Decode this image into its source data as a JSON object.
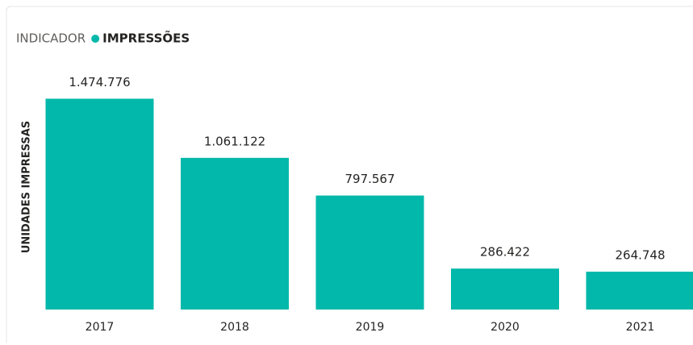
{
  "chart_data": {
    "type": "bar",
    "legend_title": "INDICADOR",
    "y_label": "UNIDADES IMPRESSAS",
    "categories": [
      "2017",
      "2018",
      "2019",
      "2020",
      "2021"
    ],
    "series": [
      {
        "name": "IMPRESSÕES",
        "color": "#01b8aa",
        "values": [
          1474776,
          1061122,
          797567,
          286422,
          264748
        ],
        "value_labels": [
          "1.474.776",
          "1.061.122",
          "797.567",
          "286.422",
          "264.748"
        ]
      }
    ],
    "ylim": [
      0,
      1500000
    ]
  }
}
